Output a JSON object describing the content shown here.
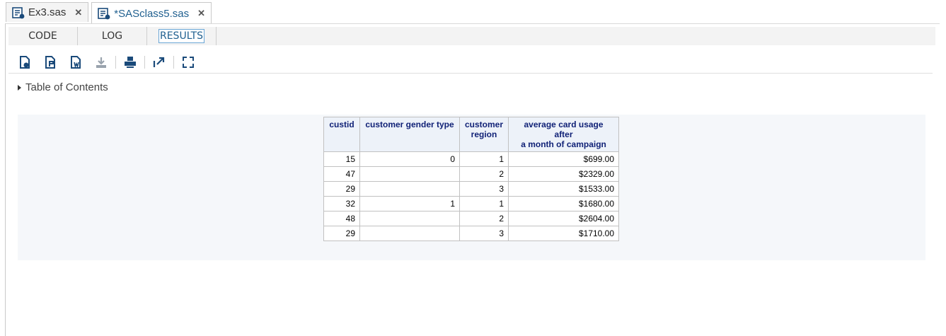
{
  "file_tabs": [
    {
      "label": "Ex3.sas",
      "close": "✕"
    },
    {
      "label": "*SASclass5.sas",
      "close": "✕"
    }
  ],
  "sub_tabs": [
    "CODE",
    "LOG",
    "RESULTS"
  ],
  "toolbar": [
    {
      "icon": "html-download-icon"
    },
    {
      "icon": "pdf-download-icon"
    },
    {
      "icon": "rtf-download-icon"
    },
    {
      "icon": "download-icon"
    },
    {
      "icon": "print-icon"
    },
    {
      "icon": "open-in-new-window-icon"
    },
    {
      "icon": "maximize-icon"
    }
  ],
  "toc": {
    "label": "Table of Contents"
  },
  "table": {
    "headers": [
      "custid",
      "customer gender type",
      "customer region",
      "average card usage after a month of campaign"
    ],
    "header_lines": [
      [
        "custid"
      ],
      [
        "customer gender type"
      ],
      [
        "customer",
        "region"
      ],
      [
        "average card usage after",
        "a month of campaign"
      ]
    ],
    "rows": [
      [
        "15",
        "0",
        "1",
        "$699.00"
      ],
      [
        "47",
        "",
        "2",
        "$2329.00"
      ],
      [
        "29",
        "",
        "3",
        "$1533.00"
      ],
      [
        "32",
        "1",
        "1",
        "$1680.00"
      ],
      [
        "48",
        "",
        "2",
        "$2604.00"
      ],
      [
        "29",
        "",
        "3",
        "$1710.00"
      ]
    ]
  },
  "colors": {
    "accent": "#1f5f8f",
    "header_text": "#112277",
    "icon": "#1a4a7a"
  }
}
